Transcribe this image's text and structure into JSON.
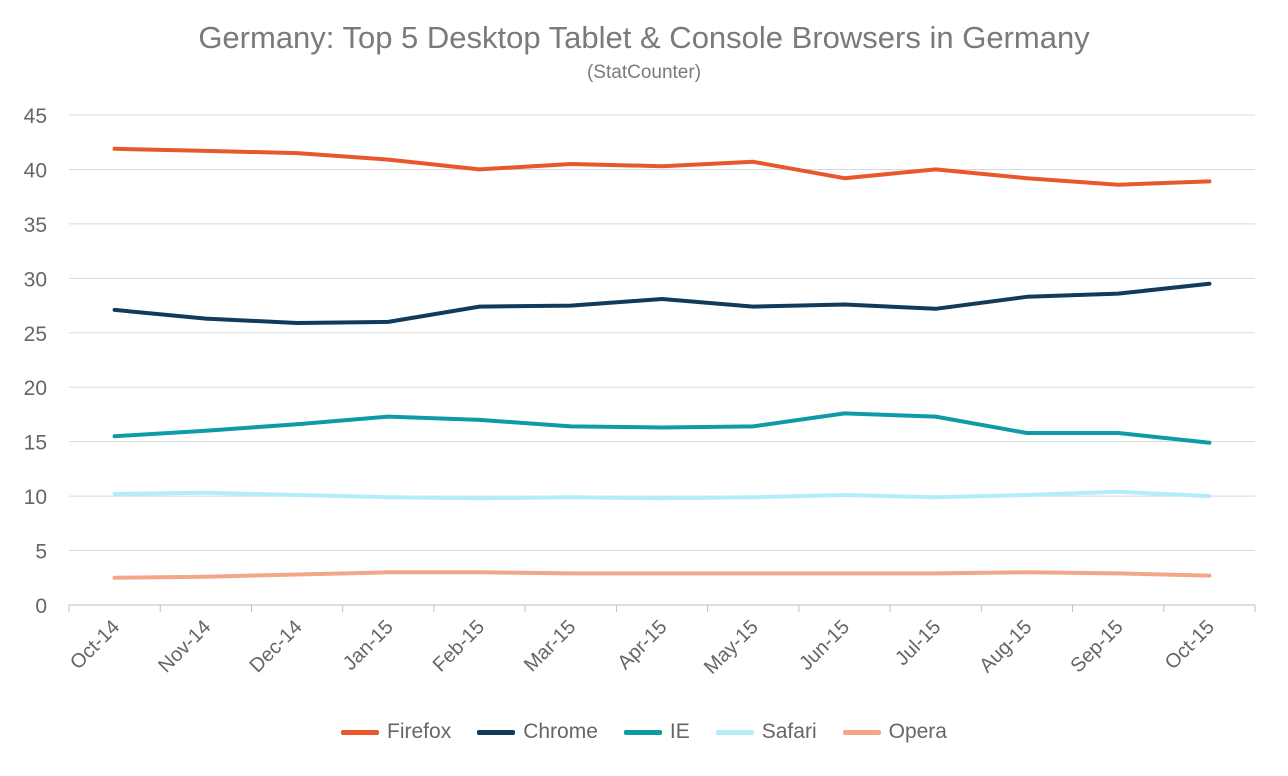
{
  "chart_data": {
    "type": "line",
    "title": "Germany: Top 5 Desktop Tablet & Console Browsers in Germany",
    "subtitle": "(StatCounter)",
    "xlabel": "",
    "ylabel": "",
    "categories": [
      "Oct-14",
      "Nov-14",
      "Dec-14",
      "Jan-15",
      "Feb-15",
      "Mar-15",
      "Apr-15",
      "May-15",
      "Jun-15",
      "Jul-15",
      "Aug-15",
      "Sep-15",
      "Oct-15"
    ],
    "ylim": [
      0,
      45
    ],
    "yticks": [
      0,
      5,
      10,
      15,
      20,
      25,
      30,
      35,
      40,
      45
    ],
    "grid": true,
    "legend_position": "bottom",
    "series": [
      {
        "name": "Firefox",
        "color": "#e8582a",
        "values": [
          41.9,
          41.7,
          41.5,
          40.9,
          40.0,
          40.5,
          40.3,
          40.7,
          39.2,
          40.0,
          39.2,
          38.6,
          38.9
        ]
      },
      {
        "name": "Chrome",
        "color": "#123a5a",
        "values": [
          27.1,
          26.3,
          25.9,
          26.0,
          27.4,
          27.5,
          28.1,
          27.4,
          27.6,
          27.2,
          28.3,
          28.6,
          29.5
        ]
      },
      {
        "name": "IE",
        "color": "#0e9aa7",
        "values": [
          15.5,
          16.0,
          16.6,
          17.3,
          17.0,
          16.4,
          16.3,
          16.4,
          17.6,
          17.3,
          15.8,
          15.8,
          14.9
        ]
      },
      {
        "name": "Safari",
        "color": "#b3ecfb",
        "values": [
          10.2,
          10.3,
          10.1,
          9.9,
          9.8,
          9.9,
          9.8,
          9.9,
          10.1,
          9.9,
          10.1,
          10.4,
          10.0
        ]
      },
      {
        "name": "Opera",
        "color": "#f2a68a",
        "values": [
          2.5,
          2.6,
          2.8,
          3.0,
          3.0,
          2.9,
          2.9,
          2.9,
          2.9,
          2.9,
          3.0,
          2.9,
          2.7
        ]
      }
    ]
  }
}
